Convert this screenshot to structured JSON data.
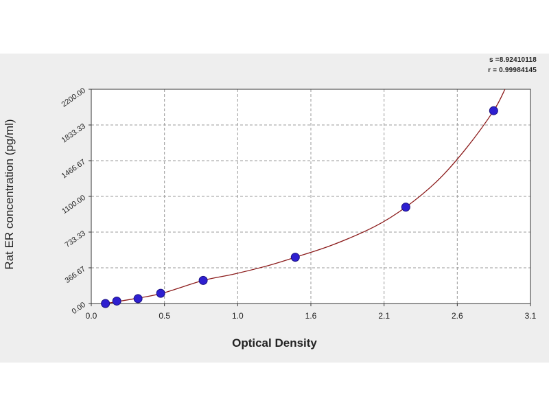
{
  "chart_data": {
    "type": "scatter",
    "title": "",
    "xlabel": "Optical Density",
    "ylabel": "Rat ER concentration (pg/ml)",
    "xlim": [
      0.0,
      3.1
    ],
    "ylim": [
      0,
      2200
    ],
    "x_ticks": [
      "0.0",
      "0.5",
      "1.0",
      "1.6",
      "2.1",
      "2.6",
      "3.1"
    ],
    "y_ticks": [
      "0.00",
      "366.67",
      "733.33",
      "1100.00",
      "1466.67",
      "1833.33",
      "2200.00"
    ],
    "grid": true,
    "legend": "none",
    "stats": {
      "s_label": "s =8.92410118",
      "r_label": "r = 0.99984145"
    },
    "series": [
      {
        "marker_color": "#2e1fd0",
        "line_color": "#8b1a1a",
        "points": [
          {
            "x": 0.1,
            "y": 0
          },
          {
            "x": 0.18,
            "y": 25
          },
          {
            "x": 0.33,
            "y": 50
          },
          {
            "x": 0.49,
            "y": 105
          },
          {
            "x": 0.79,
            "y": 237
          },
          {
            "x": 1.44,
            "y": 475
          },
          {
            "x": 2.22,
            "y": 990
          },
          {
            "x": 2.84,
            "y": 1980
          }
        ],
        "curve": [
          {
            "x": 0.1,
            "y": 0
          },
          {
            "x": 0.3,
            "y": 48
          },
          {
            "x": 0.5,
            "y": 105
          },
          {
            "x": 0.79,
            "y": 237
          },
          {
            "x": 1.0,
            "y": 300
          },
          {
            "x": 1.25,
            "y": 390
          },
          {
            "x": 1.44,
            "y": 475
          },
          {
            "x": 1.7,
            "y": 600
          },
          {
            "x": 2.0,
            "y": 790
          },
          {
            "x": 2.22,
            "y": 990
          },
          {
            "x": 2.45,
            "y": 1270
          },
          {
            "x": 2.65,
            "y": 1600
          },
          {
            "x": 2.84,
            "y": 1980
          },
          {
            "x": 2.92,
            "y": 2200
          }
        ]
      }
    ]
  }
}
